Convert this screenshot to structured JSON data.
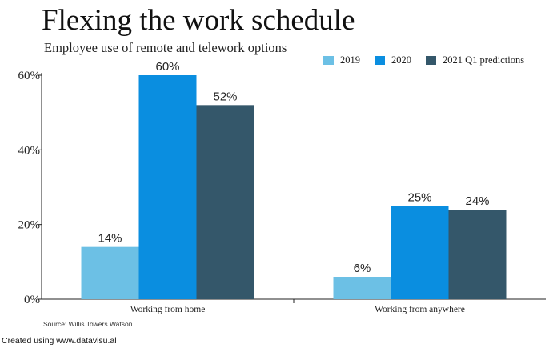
{
  "chart_data": {
    "type": "bar",
    "title": "Flexing the work schedule",
    "subtitle": "Employee use of remote and telework options",
    "categories": [
      "Working from home",
      "Working from anywhere"
    ],
    "series": [
      {
        "name": "2019",
        "values": [
          14,
          6
        ],
        "labels": [
          "14%",
          "6%"
        ],
        "color": "#6cc0e5"
      },
      {
        "name": "2020",
        "values": [
          60,
          25
        ],
        "labels": [
          "60%",
          "25%"
        ],
        "color": "#0a8ee0"
      },
      {
        "name": "2021 Q1 predictions",
        "values": [
          52,
          24
        ],
        "labels": [
          "52%",
          "24%"
        ],
        "color": "#34576a"
      }
    ],
    "ylim": [
      0,
      60
    ],
    "yticks": [
      0,
      20,
      40,
      60
    ],
    "ytick_labels": [
      "0%",
      "20%",
      "40%",
      "60%"
    ],
    "xlabel": "",
    "ylabel": "",
    "legend_position": "top-right",
    "grid": false
  },
  "source": "Source: Willis Towers Watson",
  "footer": "Created using www.datavisu.al"
}
